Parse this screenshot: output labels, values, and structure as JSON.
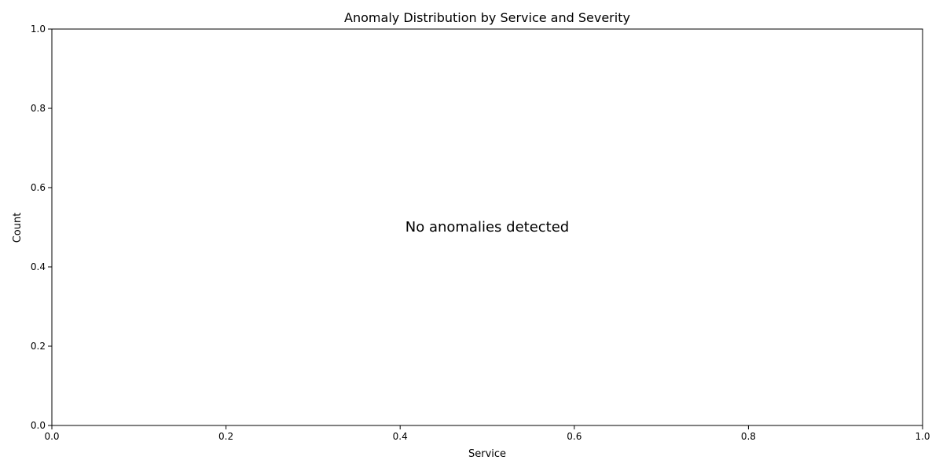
{
  "chart_data": {
    "type": "bar",
    "title": "Anomaly Distribution by Service and Severity",
    "xlabel": "Service",
    "ylabel": "Count",
    "xlim": [
      0.0,
      1.0
    ],
    "ylim": [
      0.0,
      1.0
    ],
    "x_ticks": [
      "0.0",
      "0.2",
      "0.4",
      "0.6",
      "0.8",
      "1.0"
    ],
    "y_ticks": [
      "0.0",
      "0.2",
      "0.4",
      "0.6",
      "0.8",
      "1.0"
    ],
    "categories": [],
    "series": [],
    "annotation": "No anomalies detected",
    "grid": false,
    "legend": "none"
  }
}
